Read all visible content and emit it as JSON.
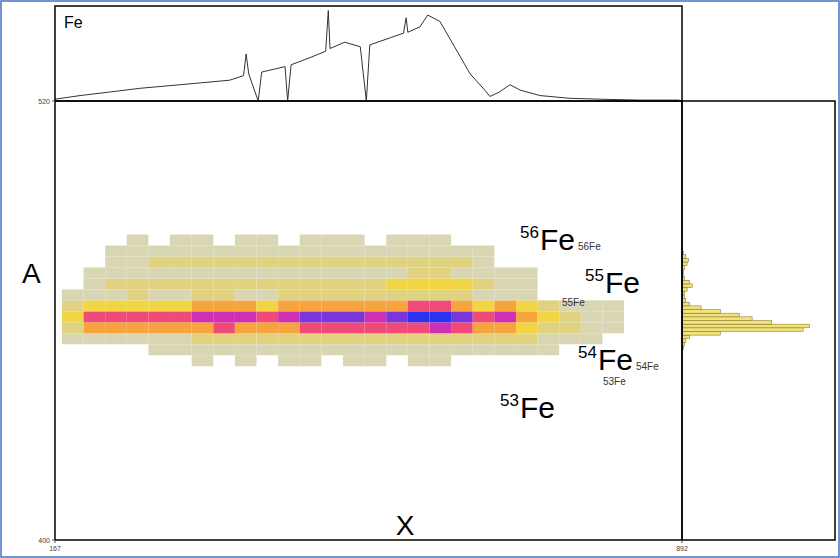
{
  "chart_data": {
    "type": "heatmap",
    "title": "Fe",
    "x_label": "X",
    "y_label": "A",
    "xlim": [
      167,
      892
    ],
    "ylim": [
      400,
      520
    ],
    "xticks": [
      167,
      892
    ],
    "yticks": [
      400,
      520
    ],
    "x_bins": [
      175,
      200,
      225,
      250,
      275,
      300,
      325,
      350,
      375,
      400,
      425,
      450,
      475,
      500,
      525,
      550,
      575,
      600,
      625,
      650,
      675,
      700,
      725,
      750,
      775,
      800,
      825
    ],
    "y_bins": [
      447.5,
      450.5,
      453.5,
      456.5,
      459.5,
      462.5,
      465.5,
      468.5,
      471.5,
      474.5,
      477.5,
      480.5,
      483.5
    ],
    "zlim": [
      0,
      100
    ],
    "cells": [
      [
        0,
        0,
        0,
        0,
        0,
        0,
        1,
        0,
        1,
        0,
        1,
        1,
        0,
        1,
        1,
        0,
        1,
        1,
        0,
        0,
        0,
        0,
        0,
        0,
        0,
        0
      ],
      [
        0,
        0,
        0,
        0,
        1,
        1,
        2,
        2,
        3,
        3,
        3,
        4,
        4,
        4,
        4,
        4,
        4,
        5,
        4,
        3,
        3,
        3,
        2,
        0,
        0,
        0
      ],
      [
        3,
        8,
        9,
        9,
        8,
        8,
        10,
        11,
        14,
        13,
        14,
        16,
        17,
        17,
        15,
        17,
        18,
        18,
        16,
        12,
        14,
        10,
        8,
        6,
        1,
        0
      ],
      [
        14,
        38,
        42,
        41,
        38,
        38,
        45,
        52,
        49,
        43,
        45,
        56,
        60,
        60,
        52,
        60,
        63,
        66,
        56,
        38,
        49,
        28,
        18,
        10,
        6,
        2
      ],
      [
        20,
        55,
        60,
        58,
        55,
        55,
        65,
        75,
        70,
        62,
        65,
        80,
        85,
        85,
        75,
        85,
        90,
        95,
        80,
        55,
        70,
        40,
        25,
        15,
        8,
        3
      ],
      [
        11,
        30,
        33,
        32,
        30,
        30,
        36,
        41,
        38,
        34,
        36,
        44,
        47,
        47,
        41,
        47,
        50,
        52,
        44,
        30,
        38,
        22,
        14,
        8,
        4,
        2
      ],
      [
        1,
        6,
        8,
        10,
        9,
        9,
        11,
        11,
        9,
        9,
        10,
        12,
        12,
        11,
        12,
        13,
        16,
        17,
        14,
        8,
        8,
        2,
        0,
        0,
        0,
        0
      ],
      [
        0,
        7,
        11,
        16,
        14,
        14,
        18,
        16,
        14,
        14,
        16,
        18,
        18,
        16,
        18,
        20,
        25,
        27,
        22,
        11,
        9,
        3,
        0,
        0,
        0,
        0
      ],
      [
        0,
        2,
        3,
        6,
        6,
        7,
        8,
        8,
        7,
        7,
        8,
        8,
        9,
        8,
        8,
        9,
        11,
        11,
        8,
        4,
        3,
        1,
        0,
        0,
        0,
        0
      ],
      [
        0,
        0,
        4,
        8,
        10,
        12,
        12,
        14,
        14,
        12,
        12,
        14,
        16,
        14,
        14,
        16,
        18,
        16,
        10,
        3,
        0,
        0,
        0,
        0,
        0,
        0
      ],
      [
        0,
        0,
        2,
        3,
        4,
        5,
        5,
        6,
        6,
        5,
        5,
        6,
        6,
        6,
        6,
        6,
        7,
        6,
        4,
        1,
        0,
        0,
        0,
        0,
        0,
        0
      ],
      [
        0,
        0,
        0,
        1,
        0,
        1,
        1,
        0,
        1,
        1,
        0,
        1,
        1,
        1,
        0,
        1,
        1,
        1,
        0,
        0,
        0,
        0,
        0,
        0,
        0,
        0
      ]
    ],
    "projection_x": {
      "x": [
        167,
        196,
        231,
        265,
        300,
        335,
        369,
        385,
        388,
        391,
        402,
        406,
        433,
        436,
        440,
        462,
        480,
        483,
        485,
        502,
        520,
        527,
        531,
        555,
        570,
        573,
        575,
        589,
        598,
        612,
        629,
        647,
        664,
        670,
        681,
        693,
        705,
        728,
        762,
        797,
        843,
        889
      ],
      "values": [
        2,
        6,
        10,
        14,
        17,
        20,
        23,
        28,
        52,
        30,
        0,
        32,
        38,
        0,
        40,
        48,
        55,
        100,
        58,
        65,
        60,
        0,
        62,
        70,
        75,
        92,
        76,
        82,
        95,
        88,
        60,
        30,
        12,
        5,
        10,
        18,
        12,
        6,
        3,
        2,
        1,
        1
      ],
      "ylim": [
        0,
        105
      ]
    },
    "projection_y": {
      "bins": [
        450,
        451,
        452,
        453,
        454,
        455,
        456,
        457,
        458,
        459,
        460,
        461,
        462,
        463,
        464,
        465,
        466,
        467,
        468,
        469,
        470,
        471,
        472,
        473,
        474,
        475,
        476,
        477,
        478,
        479,
        480
      ],
      "counts": [
        0,
        0,
        1,
        2,
        3,
        6,
        30,
        95,
        100,
        70,
        55,
        45,
        30,
        15,
        6,
        3,
        2,
        2,
        4,
        8,
        6,
        2,
        1,
        1,
        2,
        4,
        5,
        3,
        1,
        0
      ],
      "xlim": [
        0,
        120
      ]
    },
    "annotations": [
      {
        "mass": "56",
        "symbol": "Fe",
        "label": "56Fe"
      },
      {
        "mass": "55",
        "symbol": "Fe",
        "label": "55Fe"
      },
      {
        "mass": "54",
        "symbol": "Fe",
        "label": "54Fe"
      },
      {
        "mass": "53",
        "symbol": "Fe",
        "label": "53Fe"
      }
    ]
  }
}
